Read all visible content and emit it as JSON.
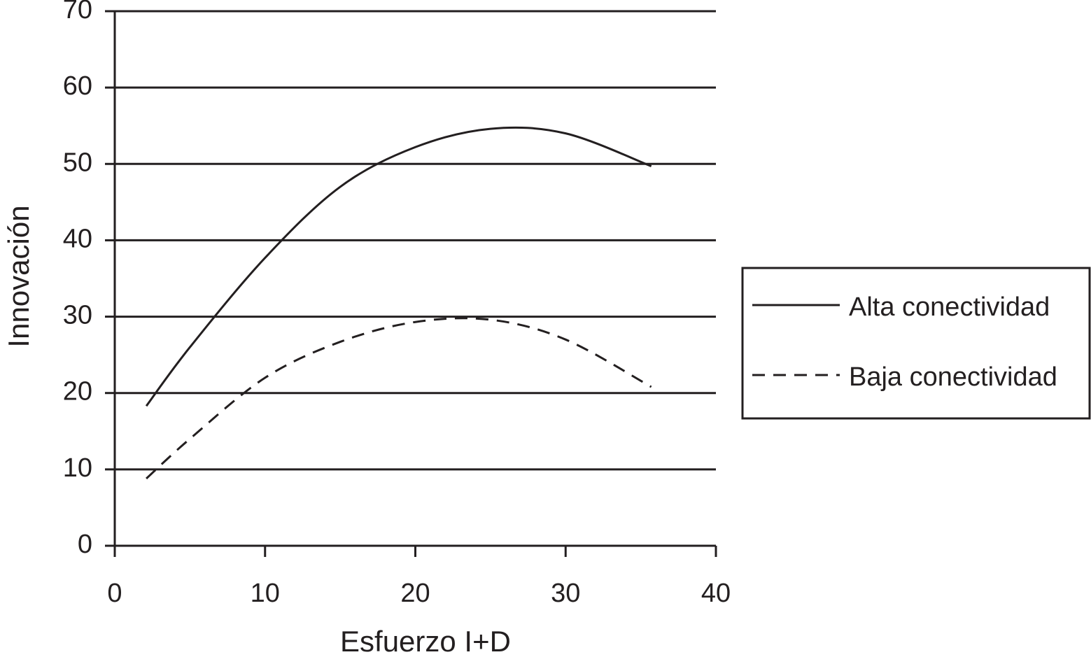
{
  "chart_data": {
    "type": "line",
    "x_label": "Esfuerzo I+D",
    "y_label": "Innovación",
    "x": [
      2.1,
      5,
      10,
      15,
      20,
      25,
      30,
      35.7
    ],
    "series": [
      {
        "name": "Alta conectividad",
        "color": "#231f20",
        "line_style": "solid",
        "values": [
          18.3,
          26,
          37.7,
          47,
          52.2,
          54.6,
          54,
          49.7
        ]
      },
      {
        "name": "Baja conectividad",
        "color": "#231f20",
        "line_style": "dashed",
        "values": [
          8.8,
          14,
          22,
          26.7,
          29.3,
          29.6,
          27,
          20.8
        ]
      }
    ],
    "xlim": [
      0,
      40
    ],
    "xticks": [
      0,
      10,
      20,
      30,
      40
    ],
    "ylim": [
      0,
      70
    ],
    "yticks": [
      0,
      10,
      20,
      30,
      40,
      50,
      60,
      70
    ],
    "grid": true,
    "legend": "right"
  }
}
